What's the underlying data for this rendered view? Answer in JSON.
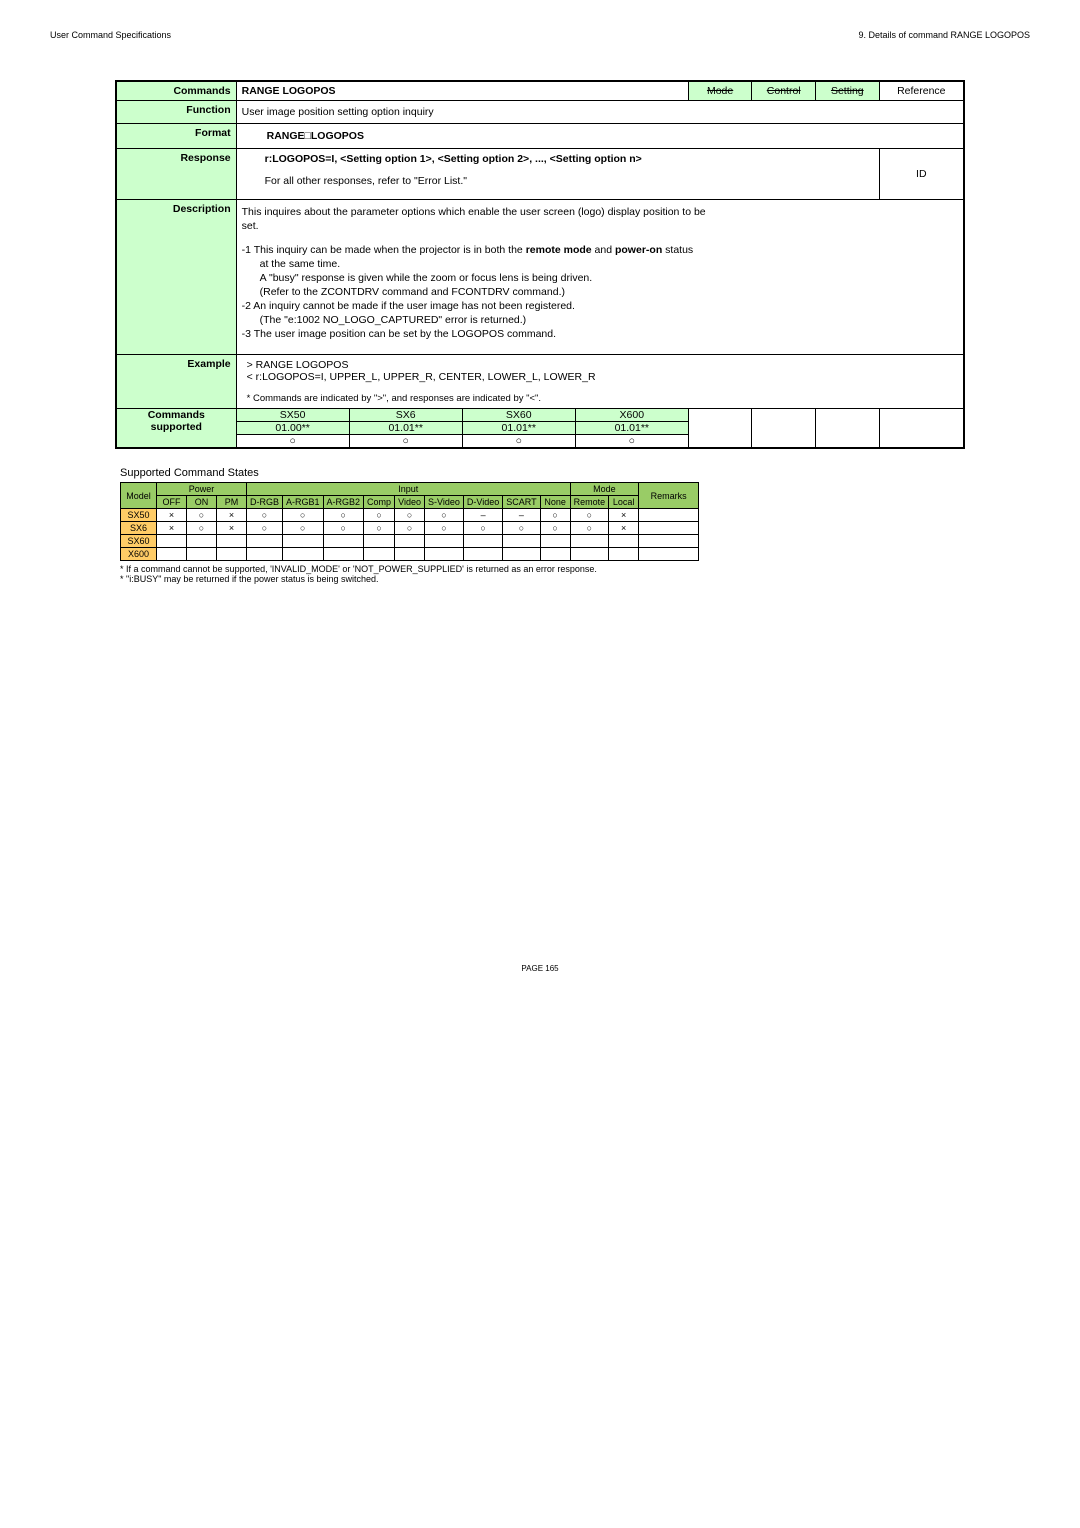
{
  "header": {
    "left": "User Command Specifications",
    "right": "9. Details of command RANGE LOGOPOS"
  },
  "main": {
    "commands_label": "Commands",
    "title": "RANGE LOGOPOS",
    "col_mode": "Mode",
    "col_control": "Control",
    "col_setting": "Setting",
    "col_reference": "Reference",
    "function_label": "Function",
    "function_text": "User image position setting option inquiry",
    "format_label": "Format",
    "format_text": "RANGE□LOGOPOS",
    "response_label": "Response",
    "response_l1": "r:LOGOPOS=I, <Setting option 1>, <Setting option 2>, ..., <Setting option n>",
    "response_l2": "For all other responses, refer to \"Error List.\"",
    "response_id": "ID",
    "description_label": "Description",
    "description_lines": {
      "a": "This inquires about the parameter options which enable the user screen (logo) display position to be",
      "b": "set.",
      "c": "-1  This inquiry can be made when the projector is in both the ",
      "c_bold": "remote mode",
      "c_mid": " and ",
      "c_bold2": "power-on",
      "c_end": " status",
      "d": "at the same time.",
      "e": "A \"busy\" response is given while the zoom or focus lens is being driven.",
      "f": "(Refer to the ZCONTDRV command and FCONTDRV command.)",
      "g": "-2  An inquiry cannot be made if the user image has not been registered.",
      "h": "(The \"e:1002 NO_LOGO_CAPTURED\" error is returned.)",
      "i": "-3  The user image position can be set by the LOGOPOS command."
    },
    "example_label": "Example",
    "example_l1": "> RANGE LOGOPOS",
    "example_l2": "< r:LOGOPOS=I, UPPER_L, UPPER_R, CENTER, LOWER_L, LOWER_R",
    "example_l3": "* Commands are indicated by \">\", and responses are indicated by \"<\".",
    "cs_label1": "Commands",
    "cs_label2": "supported",
    "cs": {
      "h": [
        "SX50",
        "SX6",
        "SX60",
        "X600"
      ],
      "r1": [
        "01.00**",
        "01.01**",
        "01.01**",
        "01.01**"
      ],
      "r2": [
        "○",
        "○",
        "○",
        "○"
      ]
    }
  },
  "sup": {
    "title": "Supported Command States",
    "h_model": "Model",
    "h_power": "Power",
    "h_input": "Input",
    "h_mode": "Mode",
    "h_remarks": "Remarks",
    "sub": [
      "OFF",
      "ON",
      "PM",
      "D-RGB",
      "A-RGB1",
      "A-RGB2",
      "Comp",
      "Video",
      "S-Video",
      "D-Video",
      "SCART",
      "None",
      "Remote",
      "Local"
    ],
    "rows": [
      {
        "m": "SX50",
        "c": [
          "×",
          "○",
          "×",
          "○",
          "○",
          "○",
          "○",
          "○",
          "○",
          "–",
          "–",
          "○",
          "○",
          "×"
        ]
      },
      {
        "m": "SX6",
        "c": [
          "×",
          "○",
          "×",
          "○",
          "○",
          "○",
          "○",
          "○",
          "○",
          "○",
          "○",
          "○",
          "○",
          "×"
        ]
      },
      {
        "m": "SX60",
        "c": [
          "",
          "",
          "",
          "",
          "",
          "",
          "",
          "",
          "",
          "",
          "",
          "",
          "",
          ""
        ]
      },
      {
        "m": "X600",
        "c": [
          "",
          "",
          "",
          "",
          "",
          "",
          "",
          "",
          "",
          "",
          "",
          "",
          "",
          ""
        ]
      }
    ]
  },
  "notes": {
    "n1": "* If a command cannot be supported, 'INVALID_MODE' or 'NOT_POWER_SUPPLIED' is returned as an error response.",
    "n2": "* \"i:BUSY\" may be returned if the power status is being switched."
  },
  "footer": "PAGE 165"
}
